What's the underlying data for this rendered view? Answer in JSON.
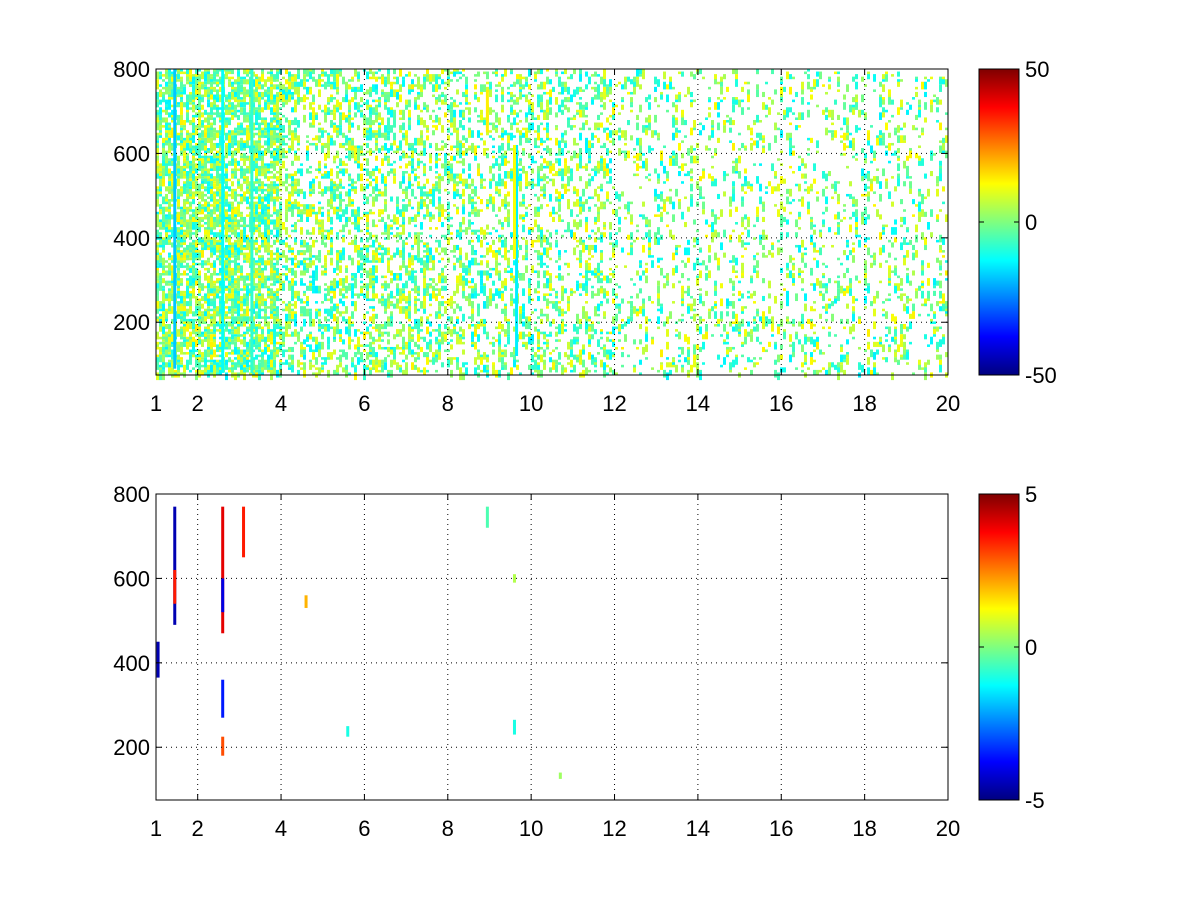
{
  "chart_data": [
    {
      "type": "heatmap",
      "title": "",
      "xlabel": "",
      "ylabel": "",
      "xlim": [
        1,
        20
      ],
      "ylim": [
        75,
        800
      ],
      "x_ticks": [
        {
          "value": 1,
          "label": "1"
        },
        {
          "value": 2,
          "label": "2"
        },
        {
          "value": 4,
          "label": "4"
        },
        {
          "value": 6,
          "label": "6"
        },
        {
          "value": 8,
          "label": "8"
        },
        {
          "value": 10,
          "label": "10"
        },
        {
          "value": 12,
          "label": "12"
        },
        {
          "value": 14,
          "label": "14"
        },
        {
          "value": 16,
          "label": "16"
        },
        {
          "value": 18,
          "label": "18"
        },
        {
          "value": 20,
          "label": "20"
        }
      ],
      "y_ticks": [
        {
          "value": 200,
          "label": "200"
        },
        {
          "value": 400,
          "label": "400"
        },
        {
          "value": 600,
          "label": "600"
        },
        {
          "value": 800,
          "label": "800"
        }
      ],
      "grid": true,
      "colormap": "jet",
      "clim": [
        -50,
        50
      ],
      "colorbar_ticks": [
        {
          "value": 50,
          "label": "50"
        },
        {
          "value": 0,
          "label": "0"
        },
        {
          "value": -50,
          "label": "-50"
        }
      ],
      "pattern": "dense",
      "streaks": [
        {
          "x": 1.45,
          "y0": 90,
          "y1": 800,
          "value": -18
        },
        {
          "x": 2.6,
          "y0": 80,
          "y1": 800,
          "value": -12
        },
        {
          "x": 3.3,
          "y0": 80,
          "y1": 800,
          "value": -8
        },
        {
          "x": 9.65,
          "y0": 120,
          "y1": 620,
          "value": -14
        },
        {
          "x": 8.95,
          "y0": 650,
          "y1": 750,
          "value": 14
        },
        {
          "x": 9.6,
          "y0": 350,
          "y1": 620,
          "value": 12
        }
      ]
    },
    {
      "type": "heatmap",
      "title": "",
      "xlabel": "",
      "ylabel": "",
      "xlim": [
        1,
        20
      ],
      "ylim": [
        75,
        800
      ],
      "x_ticks": [
        {
          "value": 1,
          "label": "1"
        },
        {
          "value": 2,
          "label": "2"
        },
        {
          "value": 4,
          "label": "4"
        },
        {
          "value": 6,
          "label": "6"
        },
        {
          "value": 8,
          "label": "8"
        },
        {
          "value": 10,
          "label": "10"
        },
        {
          "value": 12,
          "label": "12"
        },
        {
          "value": 14,
          "label": "14"
        },
        {
          "value": 16,
          "label": "16"
        },
        {
          "value": 18,
          "label": "18"
        },
        {
          "value": 20,
          "label": "20"
        }
      ],
      "y_ticks": [
        {
          "value": 200,
          "label": "200"
        },
        {
          "value": 400,
          "label": "400"
        },
        {
          "value": 600,
          "label": "600"
        },
        {
          "value": 800,
          "label": "800"
        }
      ],
      "grid": true,
      "colormap": "jet",
      "clim": [
        -5,
        5
      ],
      "colorbar_ticks": [
        {
          "value": 5,
          "label": "5"
        },
        {
          "value": 0,
          "label": "0"
        },
        {
          "value": -5,
          "label": "-5"
        }
      ],
      "pattern": "sparse",
      "streaks": [
        {
          "x": 1.45,
          "y0": 490,
          "y1": 770,
          "value": -4.5
        },
        {
          "x": 1.45,
          "y0": 540,
          "y1": 620,
          "value": 3.5
        },
        {
          "x": 2.6,
          "y0": 470,
          "y1": 770,
          "value": 4.0
        },
        {
          "x": 2.6,
          "y0": 520,
          "y1": 600,
          "value": -4.0
        },
        {
          "x": 2.6,
          "y0": 270,
          "y1": 360,
          "value": -3.5
        },
        {
          "x": 2.6,
          "y0": 180,
          "y1": 225,
          "value": 3.0
        },
        {
          "x": 3.1,
          "y0": 650,
          "y1": 770,
          "value": 3.5
        },
        {
          "x": 1.05,
          "y0": 365,
          "y1": 450,
          "value": -4.5
        },
        {
          "x": 4.6,
          "y0": 530,
          "y1": 560,
          "value": 2.0
        },
        {
          "x": 5.6,
          "y0": 225,
          "y1": 250,
          "value": -1.0
        },
        {
          "x": 8.95,
          "y0": 720,
          "y1": 770,
          "value": -0.5
        },
        {
          "x": 9.6,
          "y0": 590,
          "y1": 610,
          "value": 0.5
        },
        {
          "x": 9.6,
          "y0": 230,
          "y1": 265,
          "value": -1.0
        },
        {
          "x": 10.7,
          "y0": 125,
          "y1": 140,
          "value": 0.3
        }
      ]
    }
  ]
}
